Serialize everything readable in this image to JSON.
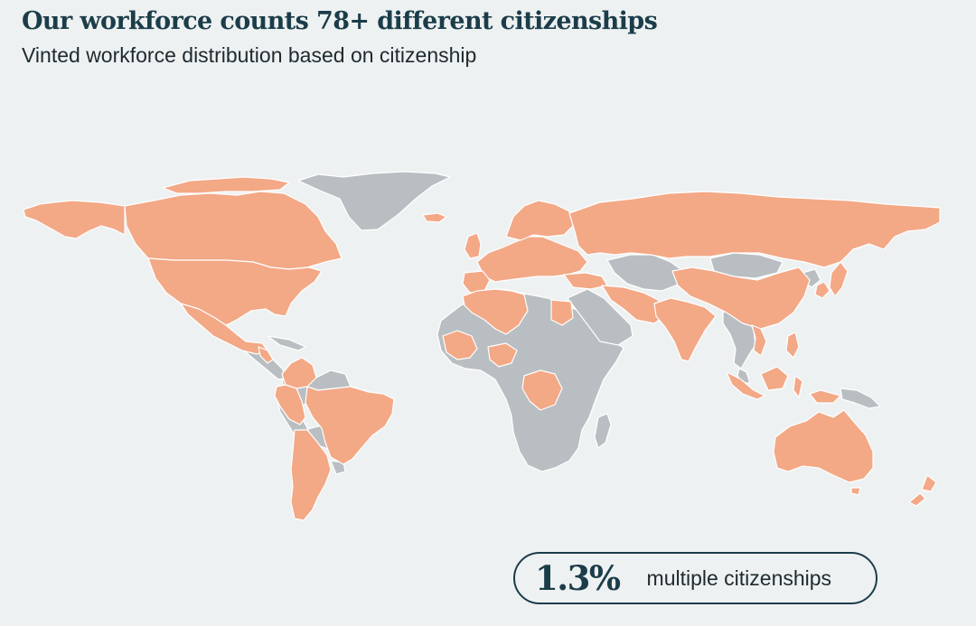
{
  "header": {
    "title": "Our workforce counts 78+ different citizenships",
    "subtitle": "Vinted workforce distribution based on citizenship"
  },
  "legend": {
    "colors": {
      "has_citizens": "#f3a886",
      "no_citizens": "#b8bec1"
    }
  },
  "stat": {
    "value": "1.3%",
    "label": "multiple citizenships"
  }
}
